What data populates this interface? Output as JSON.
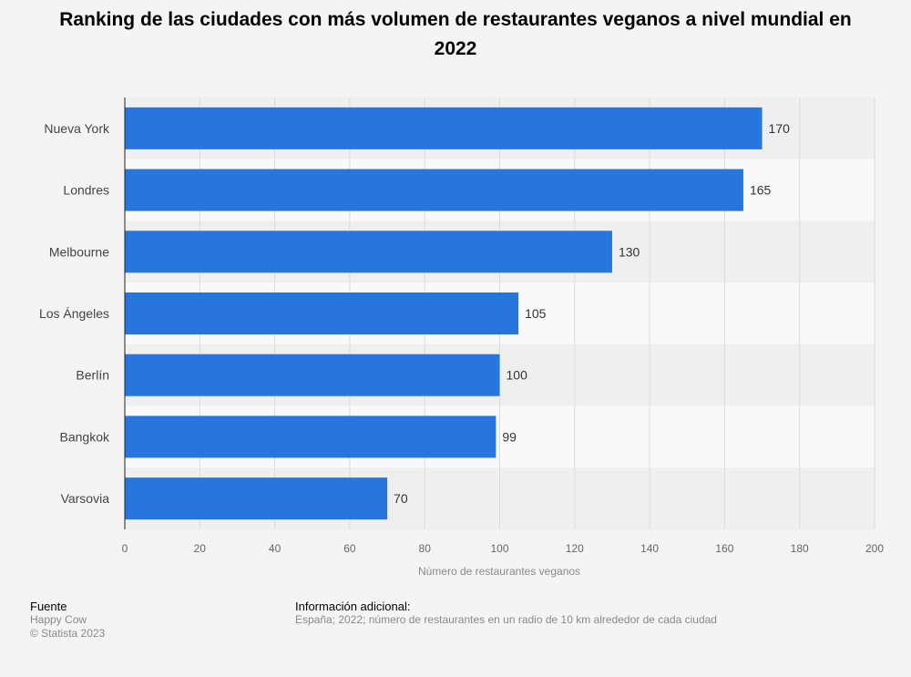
{
  "title": "Ranking de las ciudades con más volumen de restaurantes veganos a nivel mundial en 2022",
  "footer": {
    "source_heading": "Fuente",
    "source": "Happy Cow",
    "copyright": "© Statista 2023",
    "info_heading": "Información adicional:",
    "info": "España; 2022; número de restaurantes en un radio de 10 km alrededor de cada ciudad"
  },
  "colors": {
    "bar": "#2876dd",
    "band_dark": "#efefef",
    "band_light": "#f9f9f9"
  },
  "chart_data": {
    "type": "bar",
    "orientation": "horizontal",
    "categories": [
      "Nueva York",
      "Londres",
      "Melbourne",
      "Los Ángeles",
      "Berlín",
      "Bangkok",
      "Varsovia"
    ],
    "values": [
      170,
      165,
      130,
      105,
      100,
      99,
      70
    ],
    "xlabel": "Número de restaurantes veganos",
    "ylabel": "",
    "xlim": [
      0,
      200
    ],
    "ticks": [
      0,
      20,
      40,
      60,
      80,
      100,
      120,
      140,
      160,
      180,
      200
    ],
    "grid": true,
    "data_labels": true
  }
}
